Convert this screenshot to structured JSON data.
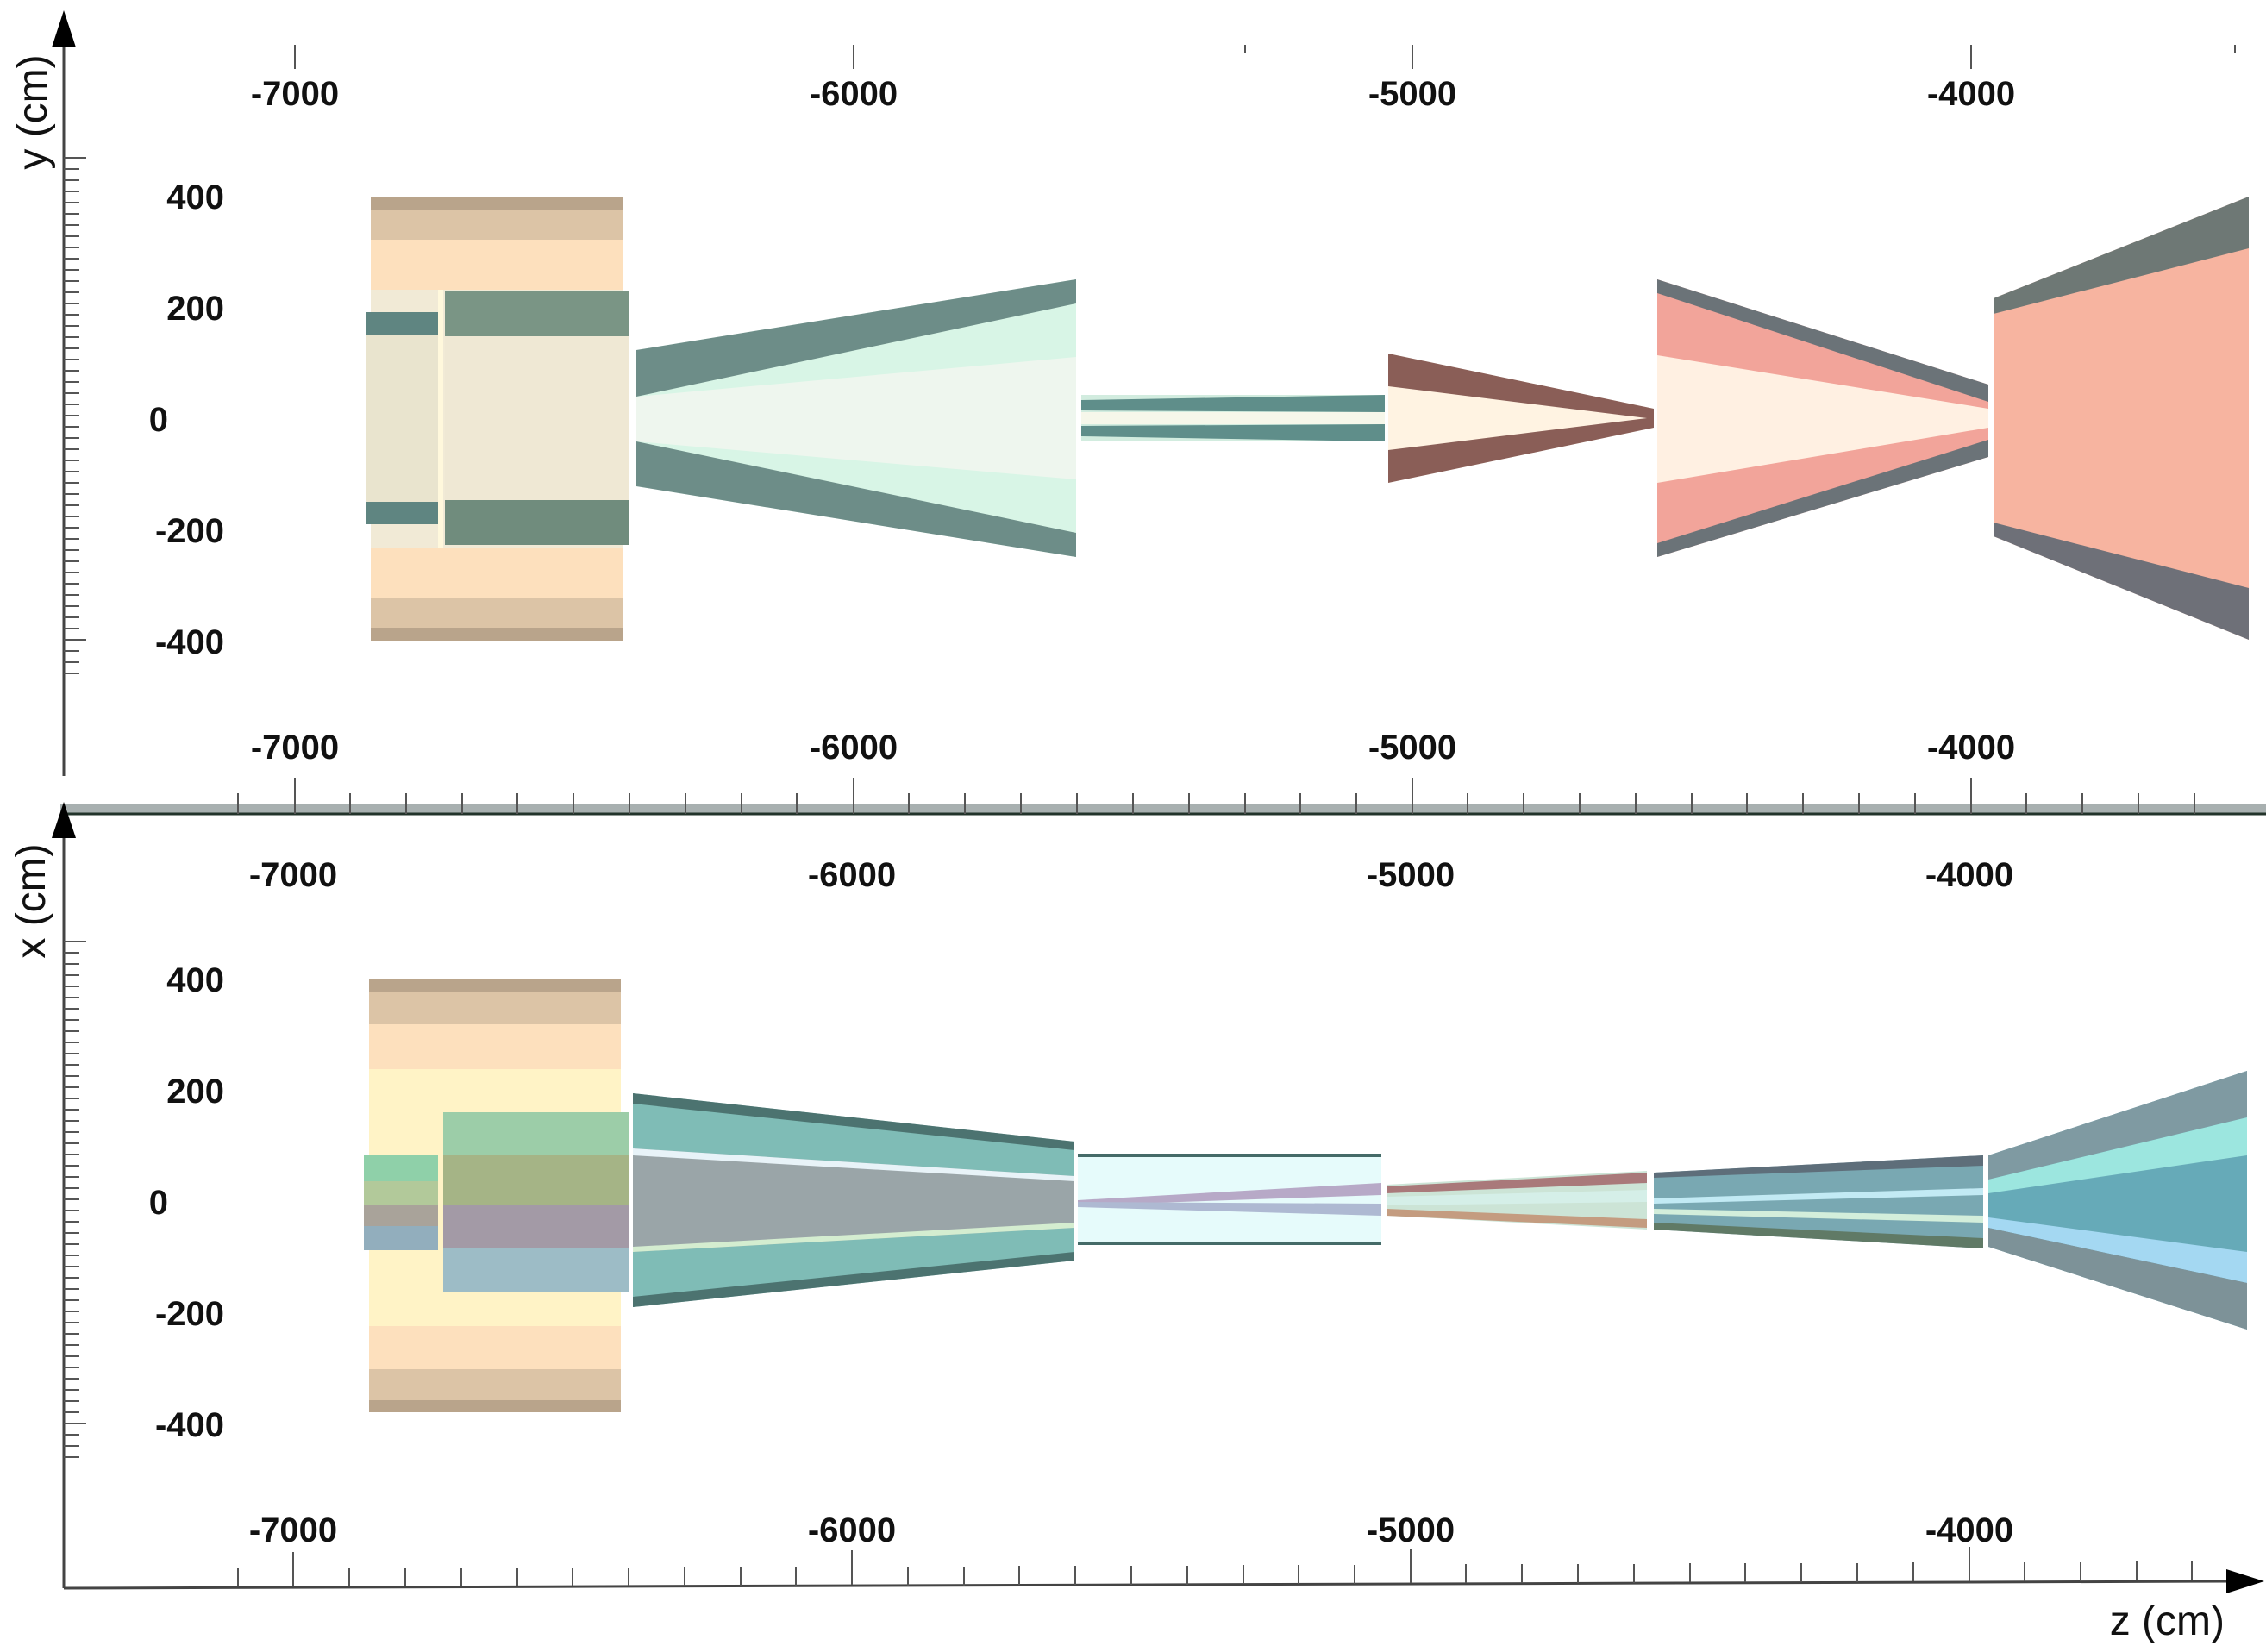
{
  "figure": {
    "top_panel": {
      "vertical_axis_title": "y (cm)",
      "vertical_ticks": [
        "400",
        "200",
        "0",
        "-200",
        "-400"
      ],
      "upper_z_ticks": [
        "-7000",
        "-6000",
        "-5000",
        "-4000"
      ],
      "lower_z_ticks": [
        "-7000",
        "-6000",
        "-5000",
        "-4000"
      ]
    },
    "bottom_panel": {
      "vertical_axis_title": "x (cm)",
      "vertical_ticks": [
        "400",
        "200",
        "0",
        "-200",
        "-400"
      ],
      "upper_z_ticks": [
        "-7000",
        "-6000",
        "-5000",
        "-4000"
      ],
      "lower_z_ticks": [
        "-7000",
        "-6000",
        "-5000",
        "-4000"
      ]
    },
    "horizontal_axis_title": "z (cm)"
  }
}
